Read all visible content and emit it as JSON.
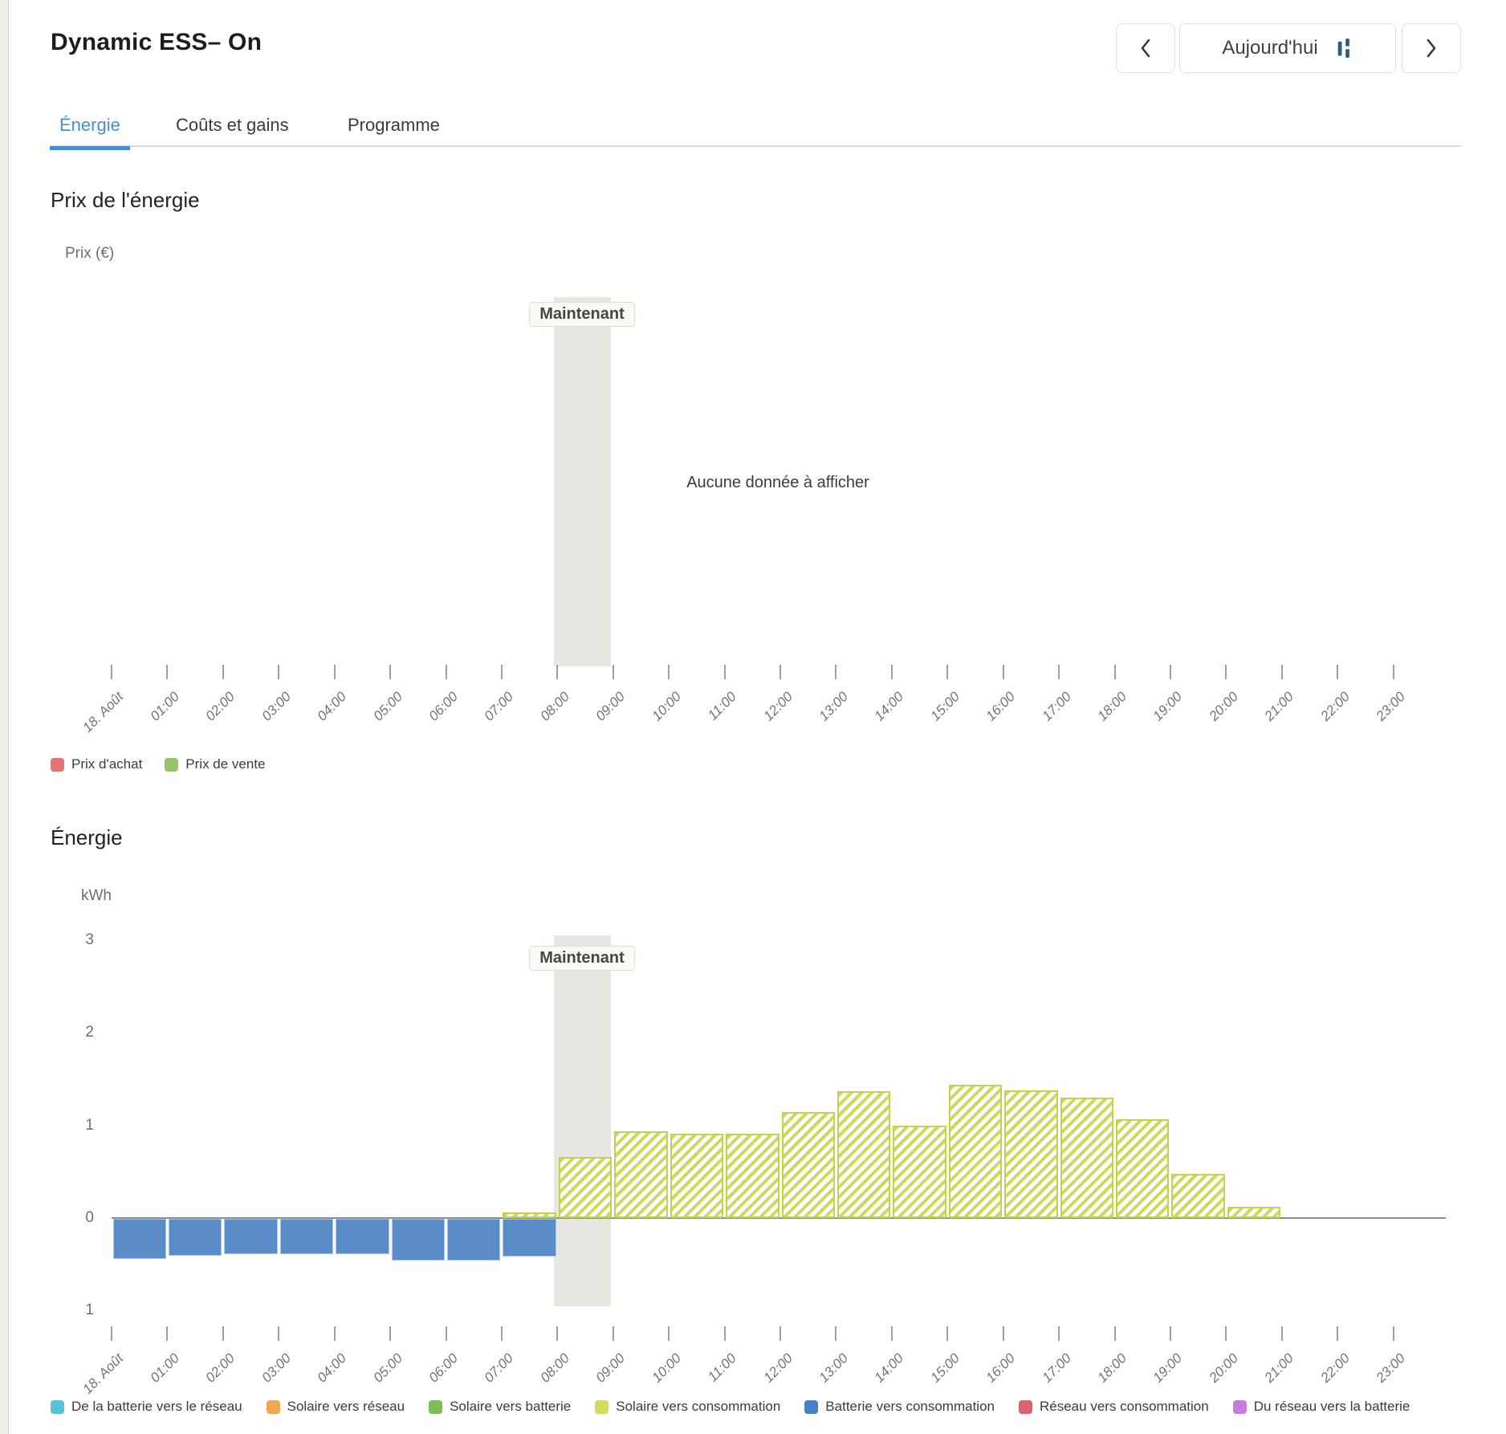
{
  "header": {
    "title": "Dynamic ESS– On",
    "today_button": "Aujourd'hui"
  },
  "tabs": {
    "energy": "Énergie",
    "costs": "Coûts et gains",
    "schedule": "Programme"
  },
  "price_section": {
    "title": "Prix de l'énergie",
    "y_axis_label": "Prix (€)",
    "now_label": "Maintenant",
    "empty_message": "Aucune donnée à afficher"
  },
  "energy_section": {
    "title": "Énergie",
    "y_axis_label": "kWh",
    "now_label": "Maintenant"
  },
  "chart_data": [
    {
      "id": "price",
      "type": "line",
      "title": "Prix de l'énergie",
      "ylabel": "Prix (€)",
      "categories": [
        "18. Août",
        "01:00",
        "02:00",
        "03:00",
        "04:00",
        "05:00",
        "06:00",
        "07:00",
        "08:00",
        "09:00",
        "10:00",
        "11:00",
        "12:00",
        "13:00",
        "14:00",
        "15:00",
        "16:00",
        "17:00",
        "18:00",
        "19:00",
        "20:00",
        "21:00",
        "22:00",
        "23:00"
      ],
      "series": [],
      "empty": true,
      "empty_message": "Aucune donnée à afficher",
      "now_band": {
        "from": "08:00",
        "to": "09:00"
      },
      "legend": [
        {
          "label": "Prix d'achat",
          "color": "#e57373"
        },
        {
          "label": "Prix de vente",
          "color": "#96c36a"
        }
      ]
    },
    {
      "id": "energy",
      "type": "bar",
      "title": "Énergie",
      "ylabel": "kWh",
      "ylim": [
        -1,
        3
      ],
      "ytick_values": [
        3,
        2,
        1,
        0,
        -1
      ],
      "ytick_labels": [
        "3",
        "2",
        "1",
        "0",
        "1"
      ],
      "grid": false,
      "legend_position": "bottom",
      "categories": [
        "18. Août",
        "01:00",
        "02:00",
        "03:00",
        "04:00",
        "05:00",
        "06:00",
        "07:00",
        "08:00",
        "09:00",
        "10:00",
        "11:00",
        "12:00",
        "13:00",
        "14:00",
        "15:00",
        "16:00",
        "17:00",
        "18:00",
        "19:00",
        "20:00",
        "21:00",
        "22:00",
        "23:00"
      ],
      "now_band": {
        "from": "08:00",
        "to": "09:00"
      },
      "series": [
        {
          "name": "Solaire vers consommation",
          "color": "#ccd95e",
          "border_color": "#c3d24d",
          "pattern": "hatch",
          "values": [
            0,
            0,
            0,
            0,
            0,
            0,
            0,
            0.06,
            0.66,
            0.94,
            0.91,
            0.91,
            1.14,
            1.37,
            1.0,
            1.44,
            1.38,
            1.3,
            1.07,
            0.48,
            0.12,
            0,
            0,
            0
          ]
        },
        {
          "name": "Batterie vers consommation",
          "color": "#5a8cc8",
          "border_color": "#a9c6e8",
          "pattern": "solid",
          "values": [
            -0.43,
            -0.4,
            -0.38,
            -0.38,
            -0.38,
            -0.45,
            -0.45,
            -0.41,
            0,
            0,
            0,
            0,
            0,
            0,
            0,
            0,
            0,
            0,
            0,
            0,
            0,
            0,
            0,
            0
          ]
        }
      ],
      "legend": [
        {
          "label": "De la batterie vers le réseau",
          "color": "#55c3d8"
        },
        {
          "label": "Solaire vers réseau",
          "color": "#f0a850"
        },
        {
          "label": "Solaire vers batterie",
          "color": "#7eb95a"
        },
        {
          "label": "Solaire vers consommation",
          "color": "#d2dc5e"
        },
        {
          "label": "Batterie vers consommation",
          "color": "#4a80c3"
        },
        {
          "label": "Réseau vers consommation",
          "color": "#d9636e"
        },
        {
          "label": "Du réseau vers la batterie",
          "color": "#c77edb"
        }
      ]
    }
  ]
}
